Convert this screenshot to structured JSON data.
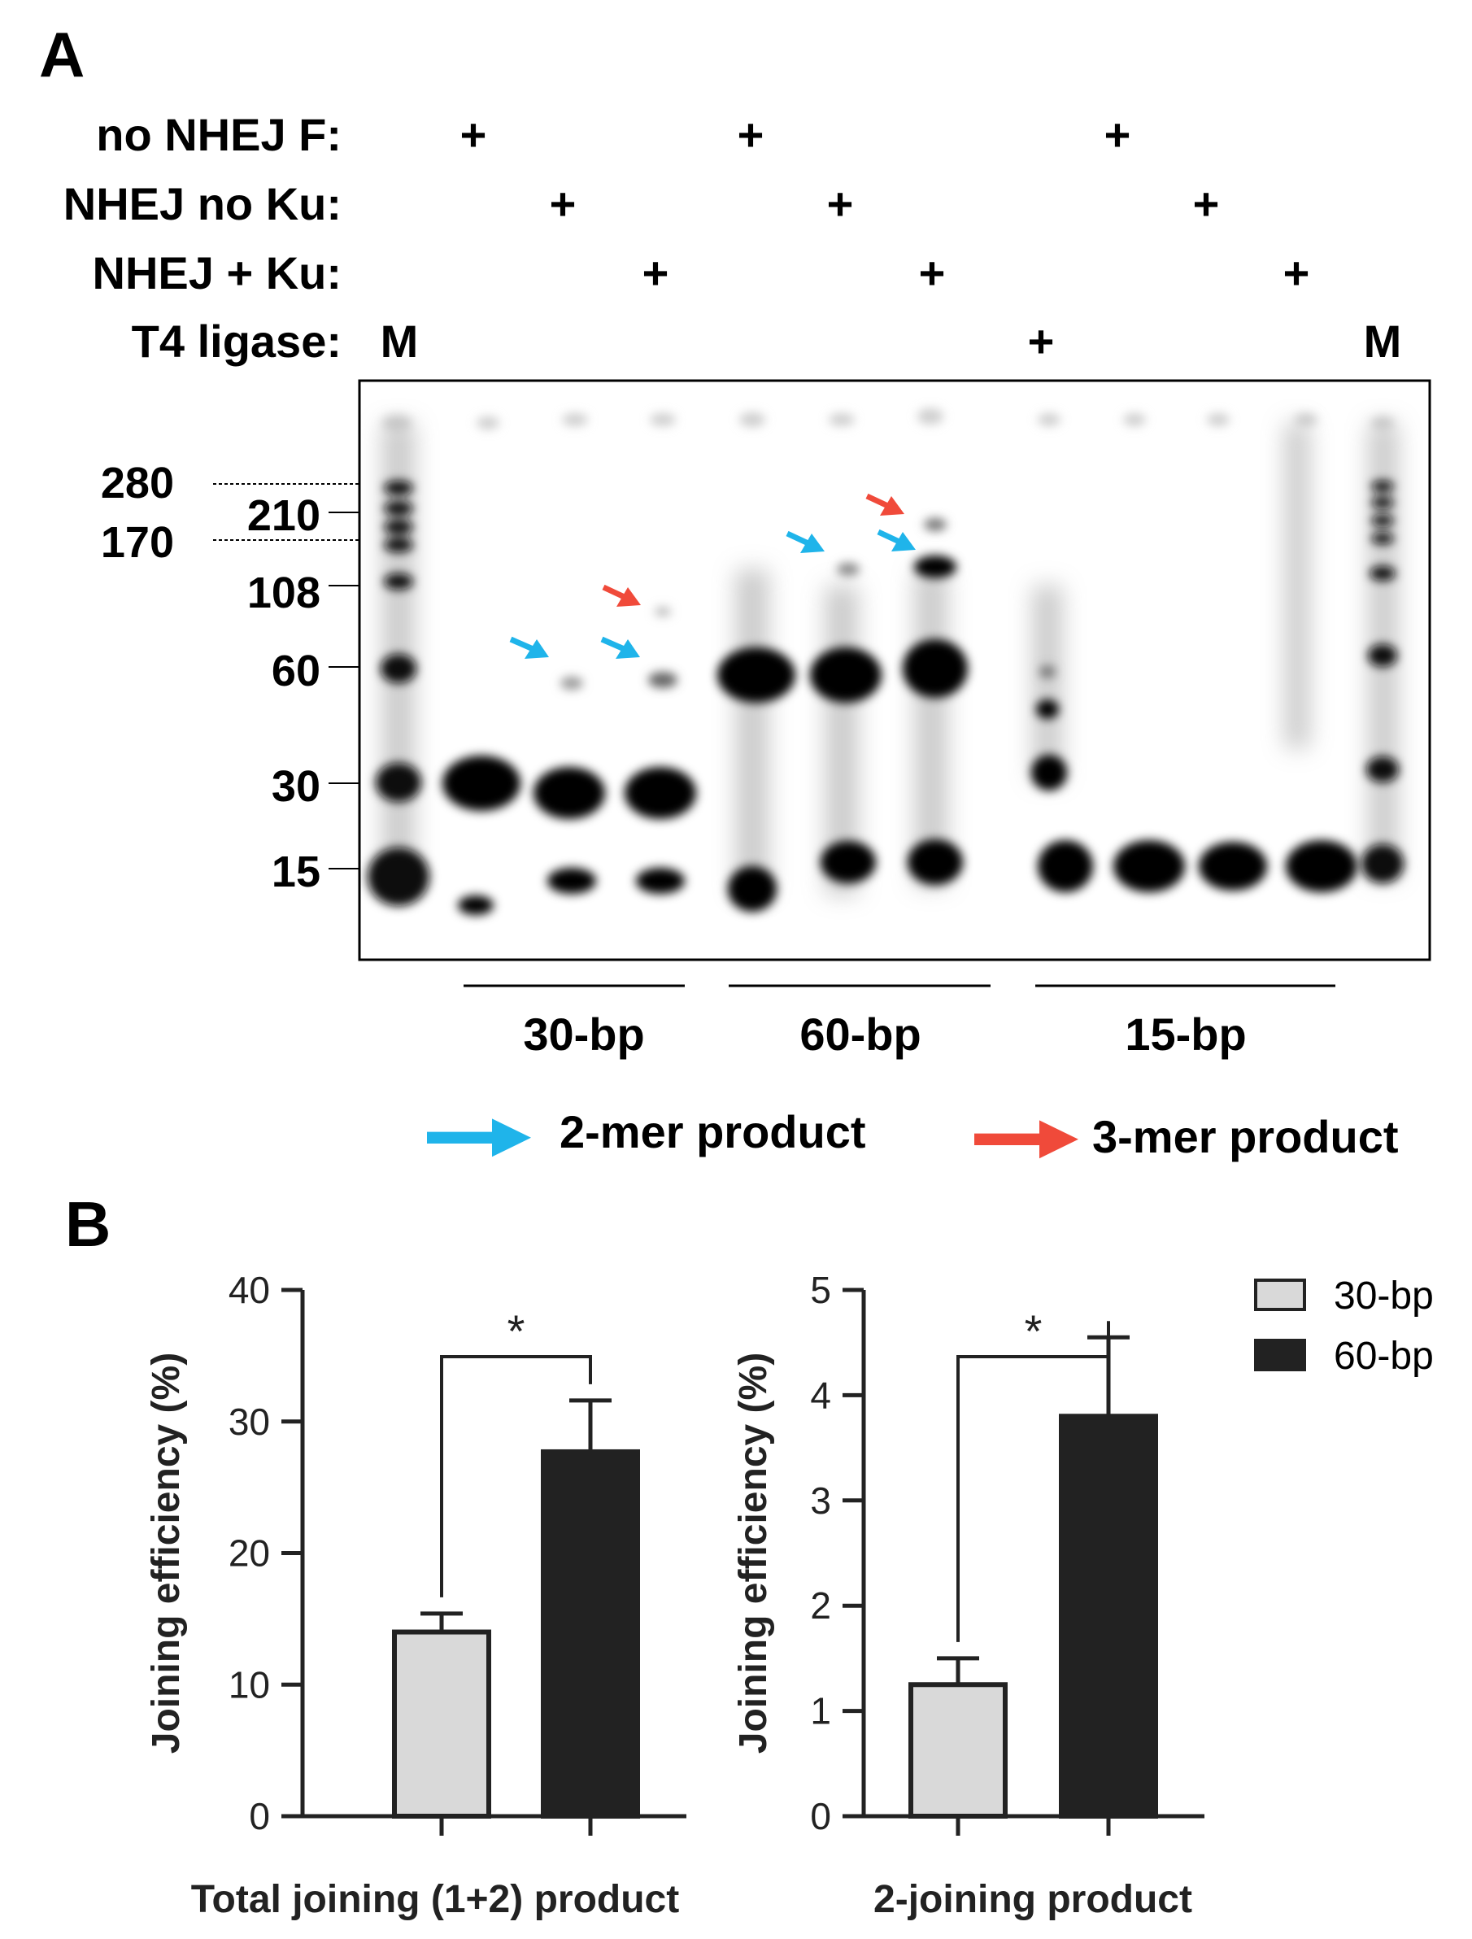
{
  "panel_a": {
    "letter": "A",
    "rows": [
      {
        "label": "no NHEJ F:",
        "marks": [
          "+",
          "+",
          "+"
        ]
      },
      {
        "label": "NHEJ no Ku:",
        "marks": [
          "+",
          "+",
          "+"
        ]
      },
      {
        "label": "NHEJ + Ku:",
        "marks": [
          "+",
          "+",
          "+"
        ]
      },
      {
        "label": "T4 ligase:",
        "marks": [
          "M",
          "+",
          "M"
        ]
      }
    ],
    "size_markers": [
      "280",
      "210",
      "170",
      "108",
      "60",
      "30",
      "15"
    ],
    "groups": [
      "30-bp",
      "60-bp",
      "15-bp"
    ],
    "legend": {
      "blue": {
        "label": "2-mer product",
        "color": "#1fb4ea"
      },
      "red": {
        "label": "3-mer product",
        "color": "#f04a3a"
      }
    }
  },
  "panel_b": {
    "letter": "B",
    "legend": [
      {
        "label": "30-bp",
        "color": "#d9d9d9"
      },
      {
        "label": "60-bp",
        "color": "#222222"
      }
    ]
  },
  "chart_data": [
    {
      "type": "bar",
      "categories": [
        "30-bp",
        "60-bp"
      ],
      "values": [
        14,
        27.7
      ],
      "errors": [
        1.4,
        3.9
      ],
      "colors": [
        "#d9d9d9",
        "#222222"
      ],
      "xlabel": "Total joining (1+2) product",
      "ylabel": "Joining efficiency (%)",
      "ylim": [
        0,
        40
      ],
      "yticks": [
        "0",
        "10",
        "20",
        "30",
        "40"
      ],
      "significance": "*"
    },
    {
      "type": "bar",
      "categories": [
        "30-bp",
        "60-bp"
      ],
      "values": [
        1.25,
        3.8
      ],
      "errors": [
        0.25,
        0.75
      ],
      "colors": [
        "#d9d9d9",
        "#222222"
      ],
      "xlabel": "2-joining product",
      "ylabel": "Joining efficiency (%)",
      "ylim": [
        0,
        5
      ],
      "yticks": [
        "0",
        "1",
        "2",
        "3",
        "4",
        "5"
      ],
      "significance": "*"
    }
  ]
}
